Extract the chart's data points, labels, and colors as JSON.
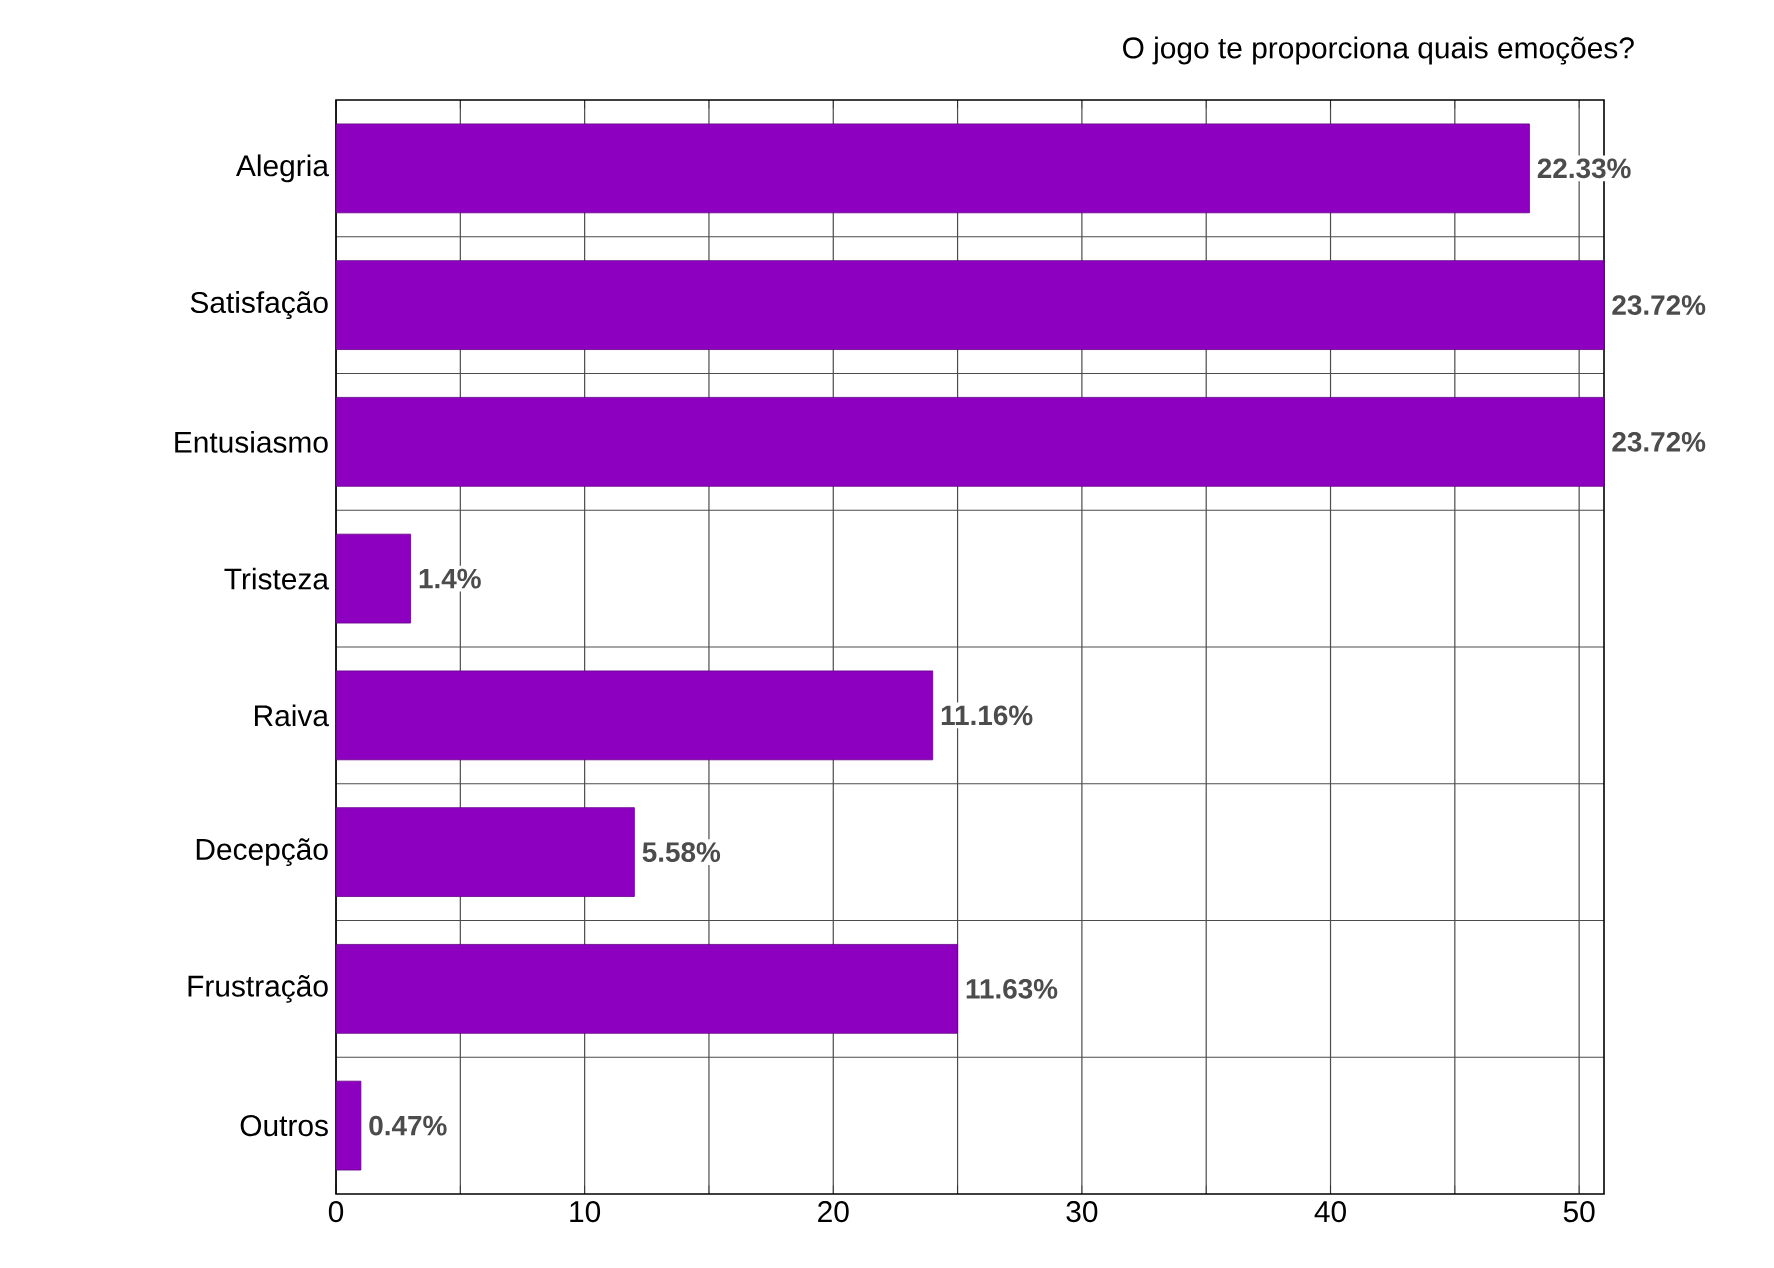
{
  "chart_data": {
    "type": "bar",
    "orientation": "horizontal",
    "title": "O jogo te proporciona quais emoções?",
    "categories": [
      "Alegria",
      "Satisfação",
      "Entusiasmo",
      "Tristeza",
      "Raiva",
      "Decepção",
      "Frustração",
      "Outros"
    ],
    "values": [
      48,
      51,
      51,
      3,
      24,
      12,
      25,
      1
    ],
    "annotations": [
      {
        "text": "22.33%",
        "x": 48,
        "y": "Alegria"
      },
      {
        "text": "23.72%",
        "x": 51,
        "y": "Satisfação"
      },
      {
        "text": "23.72%",
        "x": 51,
        "y": "Entusiasmo"
      },
      {
        "text": "1.4%",
        "x": 3,
        "y": "Tristeza"
      },
      {
        "text": "11.16%",
        "x": 24,
        "y": "Raiva"
      },
      {
        "text": "5.58%",
        "x": 12,
        "y": "Decepção"
      },
      {
        "text": "11.63%",
        "x": 25,
        "y": "Frustração"
      },
      {
        "text": "0.47%",
        "x": 1,
        "y": "Outros"
      }
    ],
    "color": "#8e00c0",
    "xlim": [
      0,
      51
    ],
    "xticks": [
      0,
      {
        "value": 5,
        "label": null
      },
      10,
      {
        "value": 15,
        "label": null
      },
      20,
      {
        "value": 25,
        "label": null
      },
      30,
      {
        "value": 35,
        "label": null
      },
      40,
      {
        "value": 45,
        "label": null
      },
      50
    ],
    "grid": true
  }
}
